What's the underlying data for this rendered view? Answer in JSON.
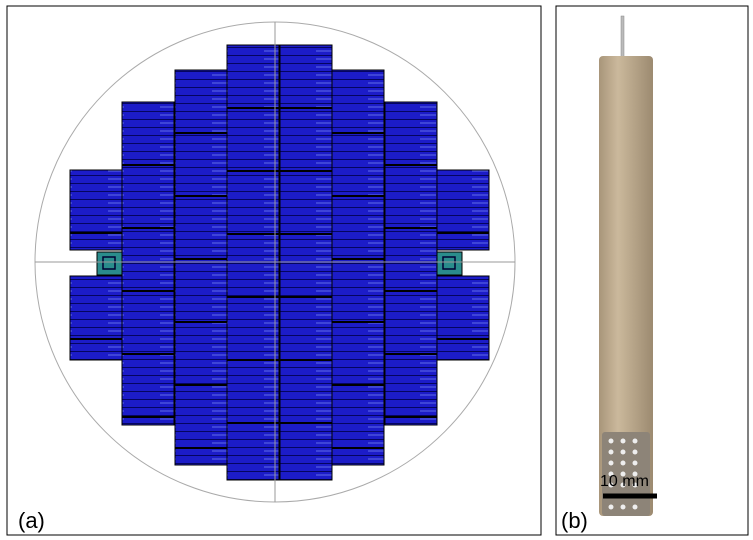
{
  "panels": [
    {
      "label": "(a)"
    },
    {
      "label": "(b)",
      "scale_bar": "10 mm"
    }
  ]
}
